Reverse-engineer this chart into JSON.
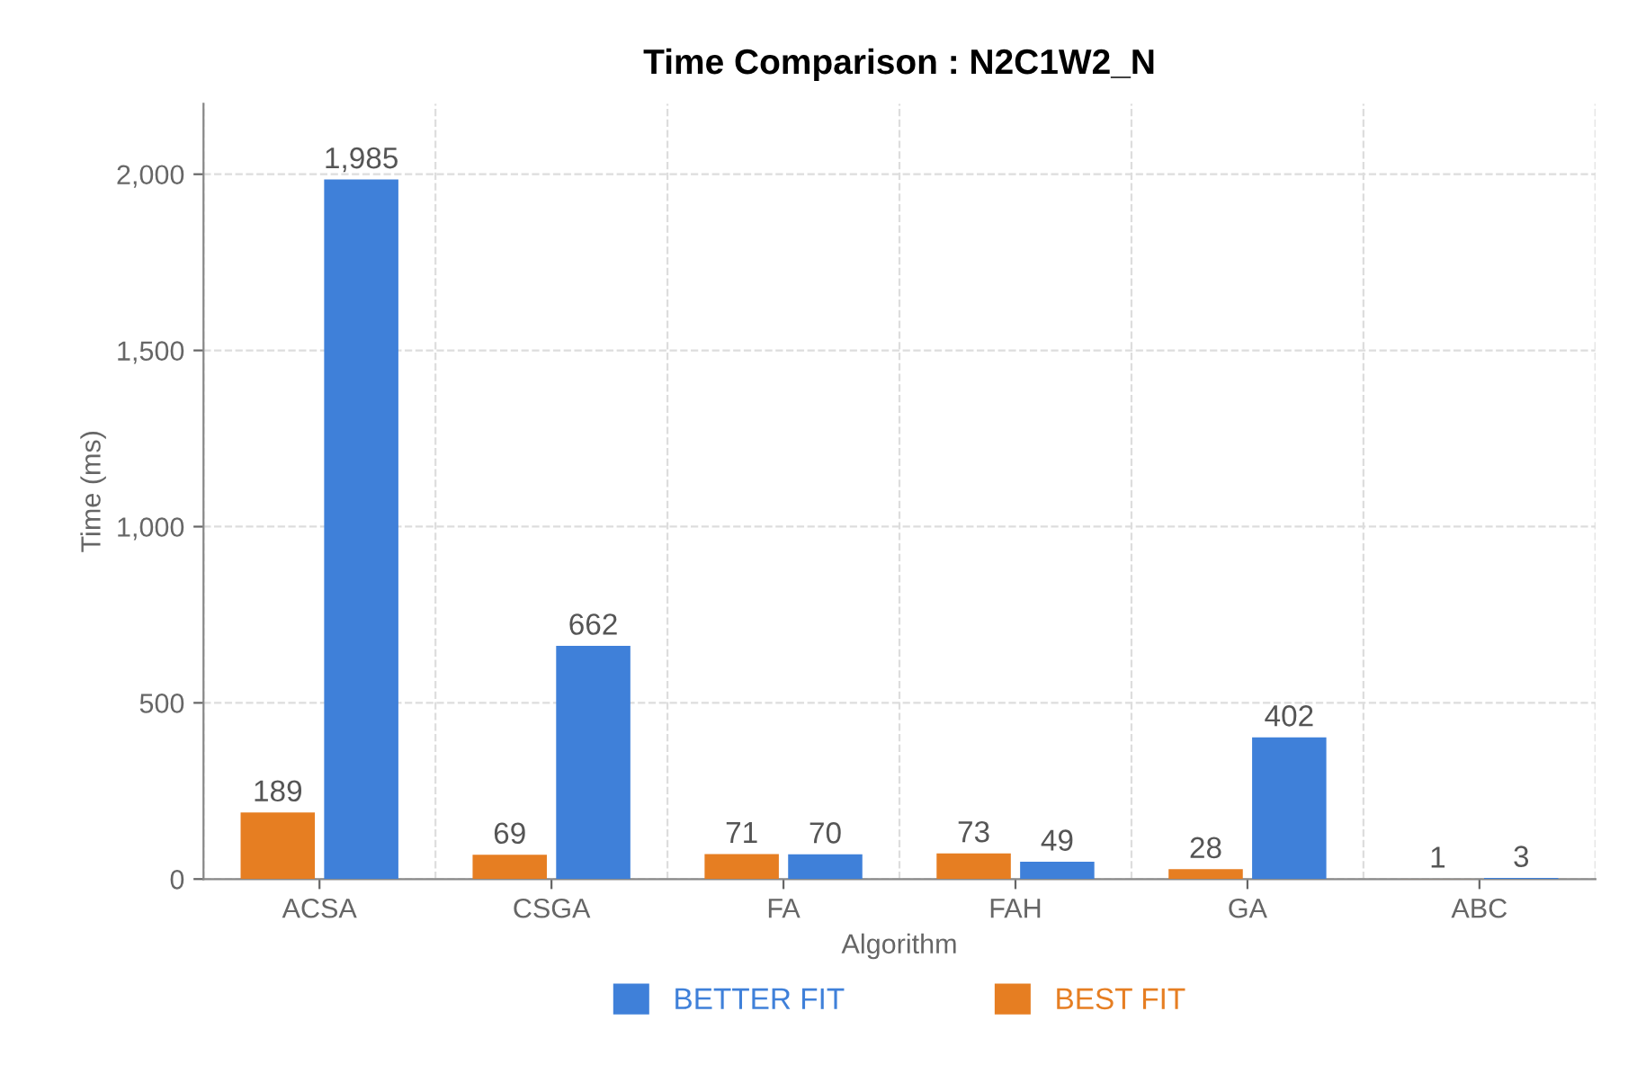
{
  "chart_data": {
    "type": "bar",
    "title": "Time Comparison : N2C1W2_N",
    "xlabel": "Algorithm",
    "ylabel": "Time (ms)",
    "categories": [
      "ACSA",
      "CSGA",
      "FA",
      "FAH",
      "GA",
      "ABC"
    ],
    "series": [
      {
        "name": "BEST FIT",
        "color": "#e67e22",
        "values": [
          189,
          69,
          71,
          73,
          28,
          1
        ],
        "value_labels": [
          "189",
          "69",
          "71",
          "73",
          "28",
          "1"
        ]
      },
      {
        "name": "BETTER FIT",
        "color": "#3f80d9",
        "values": [
          1985,
          662,
          70,
          49,
          402,
          3
        ],
        "value_labels": [
          "1,985",
          "662",
          "70",
          "49",
          "402",
          "3"
        ]
      }
    ],
    "ylim": [
      0,
      2200
    ],
    "yticks": [
      0,
      500,
      {
        "value": 1000,
        "label": "1,000"
      },
      {
        "value": 1500,
        "label": "1,500"
      },
      {
        "value": 2000,
        "label": "2,000"
      }
    ],
    "grid": true,
    "legend": "bottom"
  }
}
